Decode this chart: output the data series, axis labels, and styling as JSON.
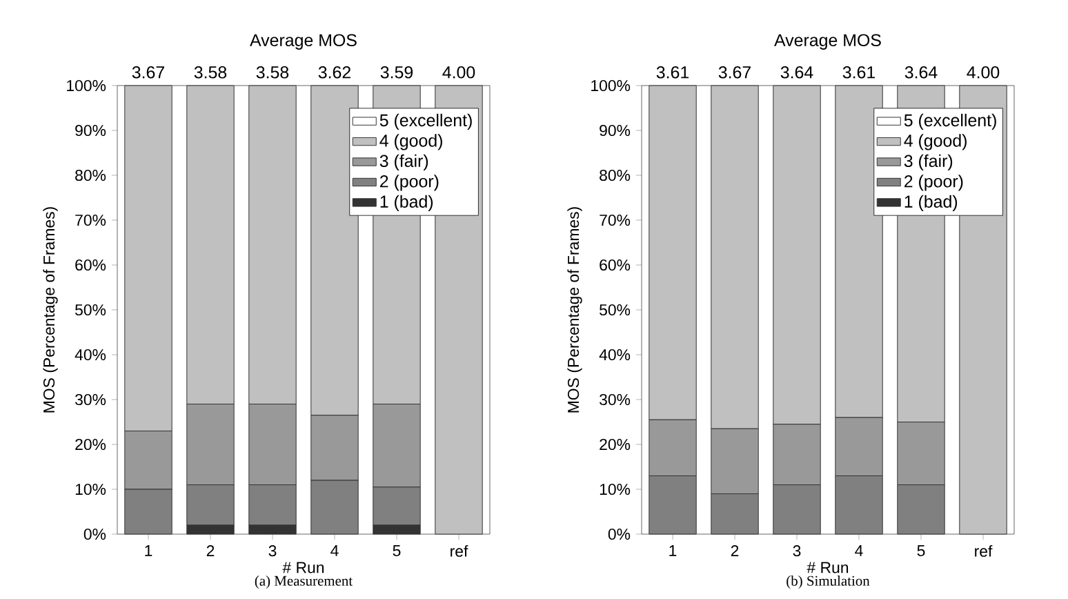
{
  "chart_data": [
    {
      "type": "bar",
      "title": "Average MOS",
      "xlabel": "# Run",
      "ylabel": "MOS (Percentage of Frames)",
      "stacked": true,
      "legend": "top right",
      "categories": [
        "1",
        "2",
        "3",
        "4",
        "5",
        "ref"
      ],
      "series": [
        {
          "name": "1 (bad)",
          "color": "#333333",
          "values": [
            0,
            2,
            2,
            0,
            2,
            0
          ]
        },
        {
          "name": "2 (poor)",
          "color": "#808080",
          "values": [
            10,
            9,
            9,
            12,
            8.5,
            0
          ]
        },
        {
          "name": "3 (fair)",
          "color": "#999999",
          "values": [
            13,
            18,
            18,
            14.5,
            18.5,
            0
          ]
        },
        {
          "name": "4 (good)",
          "color": "#c0c0c0",
          "values": [
            77,
            71,
            71,
            73.5,
            71,
            100
          ]
        },
        {
          "name": "5 (excellent)",
          "color": "#ffffff",
          "values": [
            0,
            0,
            0,
            0,
            0,
            0
          ]
        }
      ],
      "ylim": [
        0,
        100
      ],
      "yticks": [
        {
          "value": 0,
          "label": "0%"
        },
        {
          "value": 10,
          "label": "10%"
        },
        {
          "value": 20,
          "label": "20%"
        },
        {
          "value": 30,
          "label": "30%"
        },
        {
          "value": 40,
          "label": "40%"
        },
        {
          "value": 50,
          "label": "50%"
        },
        {
          "value": 60,
          "label": "60%"
        },
        {
          "value": 70,
          "label": "70%"
        },
        {
          "value": 80,
          "label": "80%"
        },
        {
          "value": 90,
          "label": "90%"
        },
        {
          "value": 100,
          "label": "100%"
        }
      ],
      "annotations": [
        "3.67",
        "3.58",
        "3.58",
        "3.62",
        "3.59",
        "4.00",
        "(a)  Measurement"
      ]
    },
    {
      "type": "bar",
      "title": "Average MOS",
      "xlabel": "# Run",
      "ylabel": "MOS (Percentage of Frames)",
      "stacked": true,
      "legend": "top right",
      "categories": [
        "1",
        "2",
        "3",
        "4",
        "5",
        "ref"
      ],
      "series": [
        {
          "name": "1 (bad)",
          "color": "#333333",
          "values": [
            0,
            0,
            0,
            0,
            0,
            0
          ]
        },
        {
          "name": "2 (poor)",
          "color": "#808080",
          "values": [
            13,
            9,
            11,
            13,
            11,
            0
          ]
        },
        {
          "name": "3 (fair)",
          "color": "#999999",
          "values": [
            12.5,
            14.5,
            13.5,
            13,
            14,
            0
          ]
        },
        {
          "name": "4 (good)",
          "color": "#c0c0c0",
          "values": [
            74.5,
            76.5,
            75.5,
            74,
            75,
            100
          ]
        },
        {
          "name": "5 (excellent)",
          "color": "#ffffff",
          "values": [
            0,
            0,
            0,
            0,
            0,
            0
          ]
        }
      ],
      "ylim": [
        0,
        100
      ],
      "yticks": [
        {
          "value": 0,
          "label": "0%"
        },
        {
          "value": 10,
          "label": "10%"
        },
        {
          "value": 20,
          "label": "20%"
        },
        {
          "value": 30,
          "label": "30%"
        },
        {
          "value": 40,
          "label": "40%"
        },
        {
          "value": 50,
          "label": "50%"
        },
        {
          "value": 60,
          "label": "60%"
        },
        {
          "value": 70,
          "label": "70%"
        },
        {
          "value": 80,
          "label": "80%"
        },
        {
          "value": 90,
          "label": "90%"
        },
        {
          "value": 100,
          "label": "100%"
        }
      ],
      "annotations": [
        "3.61",
        "3.67",
        "3.64",
        "3.61",
        "3.64",
        "4.00",
        "(b)  Simulation"
      ]
    }
  ]
}
